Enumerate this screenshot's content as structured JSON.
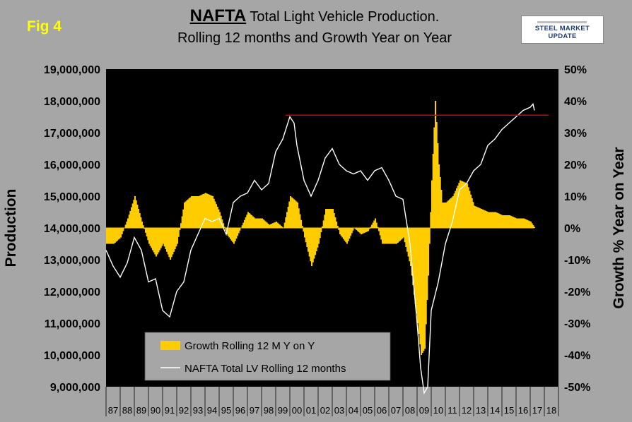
{
  "fig_label": "Fig 4",
  "title": {
    "strong": "NAFTA",
    "line1_rest": " Total Light Vehicle Production.",
    "line2": "Rolling 12 months and Growth Year on Year"
  },
  "logo_text": "STEEL MARKET UPDATE",
  "colors": {
    "plot_bg": "#000000",
    "page_bg": "#a6a6a6",
    "bars": "#ffcc00",
    "line": "#ffffff",
    "reference": "#cc0000",
    "legend_bg": "#a6a6a6"
  },
  "chart_data": {
    "type": "bar+line",
    "title": "NAFTA Total Light Vehicle Production. Rolling 12 months and Growth Year on Year",
    "ylabel_left": "Production",
    "ylabel_right": "Growth % Year on Year",
    "ylim_left": [
      9000000,
      19000000
    ],
    "ylim_right": [
      -50,
      50
    ],
    "left_ticks": [
      "19,000,000",
      "18,000,000",
      "17,000,000",
      "16,000,000",
      "15,000,000",
      "14,000,000",
      "13,000,000",
      "12,000,000",
      "11,000,000",
      "10,000,000",
      "9,000,000"
    ],
    "left_tick_values": [
      19000000,
      18000000,
      17000000,
      16000000,
      15000000,
      14000000,
      13000000,
      12000000,
      11000000,
      10000000,
      9000000
    ],
    "right_ticks": [
      "50%",
      "40%",
      "30%",
      "20%",
      "10%",
      "0%",
      "-10%",
      "-20%",
      "-30%",
      "-40%",
      "-50%"
    ],
    "right_tick_values": [
      50,
      40,
      30,
      20,
      10,
      0,
      -10,
      -20,
      -30,
      -40,
      -50
    ],
    "x_categories": [
      "87",
      "88",
      "89",
      "90",
      "91",
      "92",
      "93",
      "94",
      "95",
      "96",
      "97",
      "98",
      "99",
      "00",
      "01",
      "02",
      "03",
      "04",
      "05",
      "06",
      "07",
      "08",
      "09",
      "10",
      "11",
      "12",
      "13",
      "14",
      "15",
      "16",
      "17",
      "18"
    ],
    "x_range": [
      1987,
      2019
    ],
    "series": [
      {
        "name": "Growth Rolling 12 M Y on Y",
        "type": "bar",
        "axis": "right",
        "x": [
          1987.0,
          1987.5,
          1988.0,
          1988.5,
          1989.0,
          1989.5,
          1990.0,
          1990.5,
          1991.0,
          1991.5,
          1992.0,
          1992.5,
          1993.0,
          1993.5,
          1994.0,
          1994.5,
          1995.0,
          1995.5,
          1996.0,
          1996.5,
          1997.0,
          1997.5,
          1998.0,
          1998.5,
          1999.0,
          1999.5,
          2000.0,
          2000.5,
          2001.0,
          2001.5,
          2002.0,
          2002.5,
          2003.0,
          2003.5,
          2004.0,
          2004.5,
          2005.0,
          2005.5,
          2006.0,
          2006.5,
          2007.0,
          2007.5,
          2008.0,
          2008.5,
          2009.0,
          2009.25,
          2009.5,
          2009.75,
          2010.0,
          2010.25,
          2010.5,
          2010.75,
          2011.0,
          2011.5,
          2012.0,
          2012.5,
          2013.0,
          2013.5,
          2014.0,
          2014.5,
          2015.0,
          2015.5,
          2016.0,
          2016.5,
          2017.0,
          2017.3
        ],
        "values": [
          -5,
          -5,
          -3,
          3,
          10,
          2,
          -5,
          -9,
          -5,
          -10,
          -5,
          8,
          10,
          10,
          11,
          10,
          5,
          -2,
          -5,
          0,
          5,
          3,
          3,
          1,
          2,
          0,
          10,
          8,
          -3,
          -12,
          -5,
          6,
          6,
          -2,
          -5,
          0,
          -2,
          -1,
          3,
          -5,
          -5,
          -5,
          -3,
          -12,
          -30,
          -40,
          -38,
          -15,
          15,
          40,
          20,
          8,
          8,
          10,
          15,
          14,
          7,
          6,
          5,
          5,
          4,
          4,
          3,
          3,
          2,
          0
        ]
      },
      {
        "name": "NAFTA Total LV Rolling 12 months",
        "type": "line",
        "axis": "left",
        "x": [
          1987.0,
          1987.5,
          1988.0,
          1988.5,
          1989.0,
          1989.5,
          1990.0,
          1990.5,
          1991.0,
          1991.5,
          1992.0,
          1992.5,
          1993.0,
          1993.5,
          1994.0,
          1994.5,
          1995.0,
          1995.5,
          1996.0,
          1996.5,
          1997.0,
          1997.5,
          1998.0,
          1998.5,
          1999.0,
          1999.5,
          2000.0,
          2000.3,
          2000.5,
          2001.0,
          2001.5,
          2002.0,
          2002.5,
          2003.0,
          2003.5,
          2004.0,
          2004.5,
          2005.0,
          2005.5,
          2006.0,
          2006.5,
          2007.0,
          2007.5,
          2008.0,
          2008.5,
          2009.0,
          2009.25,
          2009.5,
          2009.75,
          2010.0,
          2010.5,
          2011.0,
          2011.5,
          2012.0,
          2012.5,
          2013.0,
          2013.5,
          2014.0,
          2014.5,
          2015.0,
          2015.5,
          2016.0,
          2016.5,
          2017.0,
          2017.2,
          2017.3
        ],
        "values": [
          13300000,
          12800000,
          12450000,
          12900000,
          13700000,
          13300000,
          12300000,
          12400000,
          11400000,
          11200000,
          12000000,
          12300000,
          13300000,
          13800000,
          14300000,
          14200000,
          14300000,
          13800000,
          14800000,
          15000000,
          15100000,
          15500000,
          15200000,
          15400000,
          16400000,
          16800000,
          17500000,
          17300000,
          16600000,
          15500000,
          15000000,
          15500000,
          16200000,
          16500000,
          16000000,
          15800000,
          15700000,
          15800000,
          15500000,
          15800000,
          15900000,
          15500000,
          15000000,
          14900000,
          13500000,
          11000000,
          9600000,
          8800000,
          9000000,
          11400000,
          12300000,
          13500000,
          14200000,
          15200000,
          15400000,
          15800000,
          16000000,
          16600000,
          16800000,
          17100000,
          17300000,
          17500000,
          17700000,
          17800000,
          17900000,
          17700000
        ]
      }
    ],
    "reference_line": {
      "axis": "left",
      "value": 17550000,
      "x_start": 1999.7,
      "x_end": 2018.3
    },
    "legend": [
      {
        "label": "Growth Rolling 12 M Y on Y",
        "swatch": "bar"
      },
      {
        "label": "NAFTA Total LV Rolling 12 months",
        "swatch": "line"
      }
    ],
    "grid": false,
    "legend_position": "bottom-left"
  }
}
